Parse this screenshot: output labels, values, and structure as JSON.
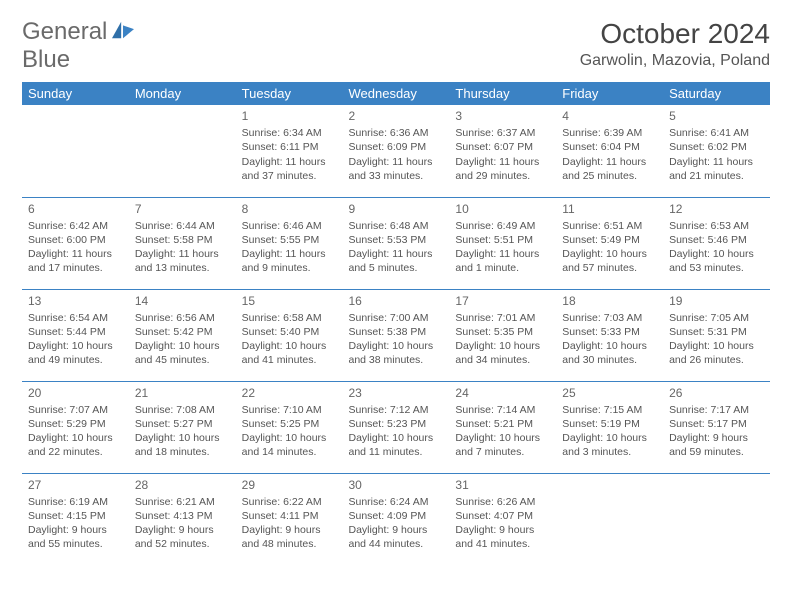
{
  "brand": {
    "part1": "General",
    "part2": "Blue"
  },
  "title": "October 2024",
  "location": "Garwolin, Mazovia, Poland",
  "colors": {
    "header_bg": "#3b82c4",
    "header_fg": "#ffffff",
    "border": "#3b82c4",
    "text": "#555555",
    "daynum": "#666666"
  },
  "day_headers": [
    "Sunday",
    "Monday",
    "Tuesday",
    "Wednesday",
    "Thursday",
    "Friday",
    "Saturday"
  ],
  "weeks": [
    [
      null,
      null,
      {
        "n": "1",
        "sr": "6:34 AM",
        "ss": "6:11 PM",
        "dl": "11 hours and 37 minutes."
      },
      {
        "n": "2",
        "sr": "6:36 AM",
        "ss": "6:09 PM",
        "dl": "11 hours and 33 minutes."
      },
      {
        "n": "3",
        "sr": "6:37 AM",
        "ss": "6:07 PM",
        "dl": "11 hours and 29 minutes."
      },
      {
        "n": "4",
        "sr": "6:39 AM",
        "ss": "6:04 PM",
        "dl": "11 hours and 25 minutes."
      },
      {
        "n": "5",
        "sr": "6:41 AM",
        "ss": "6:02 PM",
        "dl": "11 hours and 21 minutes."
      }
    ],
    [
      {
        "n": "6",
        "sr": "6:42 AM",
        "ss": "6:00 PM",
        "dl": "11 hours and 17 minutes."
      },
      {
        "n": "7",
        "sr": "6:44 AM",
        "ss": "5:58 PM",
        "dl": "11 hours and 13 minutes."
      },
      {
        "n": "8",
        "sr": "6:46 AM",
        "ss": "5:55 PM",
        "dl": "11 hours and 9 minutes."
      },
      {
        "n": "9",
        "sr": "6:48 AM",
        "ss": "5:53 PM",
        "dl": "11 hours and 5 minutes."
      },
      {
        "n": "10",
        "sr": "6:49 AM",
        "ss": "5:51 PM",
        "dl": "11 hours and 1 minute."
      },
      {
        "n": "11",
        "sr": "6:51 AM",
        "ss": "5:49 PM",
        "dl": "10 hours and 57 minutes."
      },
      {
        "n": "12",
        "sr": "6:53 AM",
        "ss": "5:46 PM",
        "dl": "10 hours and 53 minutes."
      }
    ],
    [
      {
        "n": "13",
        "sr": "6:54 AM",
        "ss": "5:44 PM",
        "dl": "10 hours and 49 minutes."
      },
      {
        "n": "14",
        "sr": "6:56 AM",
        "ss": "5:42 PM",
        "dl": "10 hours and 45 minutes."
      },
      {
        "n": "15",
        "sr": "6:58 AM",
        "ss": "5:40 PM",
        "dl": "10 hours and 41 minutes."
      },
      {
        "n": "16",
        "sr": "7:00 AM",
        "ss": "5:38 PM",
        "dl": "10 hours and 38 minutes."
      },
      {
        "n": "17",
        "sr": "7:01 AM",
        "ss": "5:35 PM",
        "dl": "10 hours and 34 minutes."
      },
      {
        "n": "18",
        "sr": "7:03 AM",
        "ss": "5:33 PM",
        "dl": "10 hours and 30 minutes."
      },
      {
        "n": "19",
        "sr": "7:05 AM",
        "ss": "5:31 PM",
        "dl": "10 hours and 26 minutes."
      }
    ],
    [
      {
        "n": "20",
        "sr": "7:07 AM",
        "ss": "5:29 PM",
        "dl": "10 hours and 22 minutes."
      },
      {
        "n": "21",
        "sr": "7:08 AM",
        "ss": "5:27 PM",
        "dl": "10 hours and 18 minutes."
      },
      {
        "n": "22",
        "sr": "7:10 AM",
        "ss": "5:25 PM",
        "dl": "10 hours and 14 minutes."
      },
      {
        "n": "23",
        "sr": "7:12 AM",
        "ss": "5:23 PM",
        "dl": "10 hours and 11 minutes."
      },
      {
        "n": "24",
        "sr": "7:14 AM",
        "ss": "5:21 PM",
        "dl": "10 hours and 7 minutes."
      },
      {
        "n": "25",
        "sr": "7:15 AM",
        "ss": "5:19 PM",
        "dl": "10 hours and 3 minutes."
      },
      {
        "n": "26",
        "sr": "7:17 AM",
        "ss": "5:17 PM",
        "dl": "9 hours and 59 minutes."
      }
    ],
    [
      {
        "n": "27",
        "sr": "6:19 AM",
        "ss": "4:15 PM",
        "dl": "9 hours and 55 minutes."
      },
      {
        "n": "28",
        "sr": "6:21 AM",
        "ss": "4:13 PM",
        "dl": "9 hours and 52 minutes."
      },
      {
        "n": "29",
        "sr": "6:22 AM",
        "ss": "4:11 PM",
        "dl": "9 hours and 48 minutes."
      },
      {
        "n": "30",
        "sr": "6:24 AM",
        "ss": "4:09 PM",
        "dl": "9 hours and 44 minutes."
      },
      {
        "n": "31",
        "sr": "6:26 AM",
        "ss": "4:07 PM",
        "dl": "9 hours and 41 minutes."
      },
      null,
      null
    ]
  ],
  "labels": {
    "sunrise": "Sunrise: ",
    "sunset": "Sunset: ",
    "daylight": "Daylight: "
  }
}
